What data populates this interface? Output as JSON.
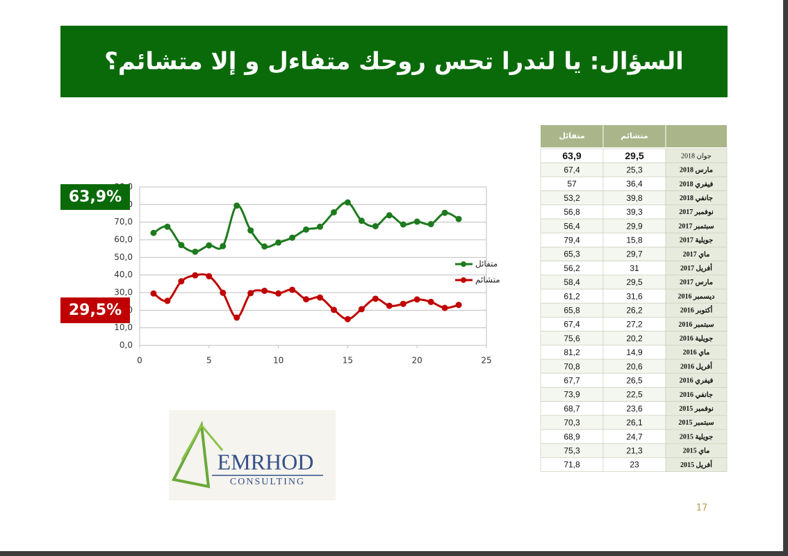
{
  "title": "السؤال: يا لندرا تحس روحك متفاءل و إلا متشائم؟",
  "callouts": [
    "63,9%",
    "29,5%"
  ],
  "chart_data": {
    "type": "line",
    "x": [
      1,
      2,
      3,
      4,
      5,
      6,
      7,
      8,
      9,
      10,
      11,
      12,
      13,
      14,
      15,
      16,
      17,
      18,
      19,
      20,
      21,
      22,
      23
    ],
    "series": [
      {
        "name": "متفائل",
        "color": "#1e7a1e",
        "values": [
          63.9,
          67.4,
          57,
          53.2,
          56.8,
          56.4,
          79.4,
          65.3,
          56.2,
          58.4,
          61.2,
          65.8,
          67.4,
          75.6,
          81.2,
          70.8,
          67.7,
          73.9,
          68.7,
          70.3,
          68.9,
          75.3,
          71.8
        ]
      },
      {
        "name": "متشائم",
        "color": "#c00000",
        "values": [
          29.5,
          25.3,
          36.4,
          39.8,
          39.3,
          29.9,
          15.8,
          29.7,
          31,
          29.5,
          31.6,
          26.2,
          27.2,
          20.2,
          14.9,
          20.6,
          26.5,
          22.5,
          23.6,
          26.1,
          24.7,
          21.3,
          23
        ]
      }
    ],
    "xlim": [
      0,
      25
    ],
    "xticks": [
      0,
      5,
      10,
      15,
      20,
      25
    ],
    "ylim": [
      0,
      90
    ],
    "yticks": [
      {
        "value": 0,
        "label": "0,0"
      },
      {
        "value": 10,
        "label": "10,0"
      },
      {
        "value": 20,
        "label": "20,0"
      },
      {
        "value": 30,
        "label": "30,0"
      },
      {
        "value": 40,
        "label": "40,0"
      },
      {
        "value": 50,
        "label": "50,0"
      },
      {
        "value": 60,
        "label": "60,0"
      },
      {
        "value": 70,
        "label": "70,0"
      },
      {
        "value": 80,
        "label": "80,0"
      },
      {
        "value": 90,
        "label": "90,0"
      }
    ],
    "grid": true,
    "legend": "right"
  },
  "table": {
    "header": [
      "متفائل",
      "متشائم"
    ],
    "rows": [
      [
        "63,9",
        "29,5",
        "جوان 2018"
      ],
      [
        "67,4",
        "25,3",
        "مارس 2018"
      ],
      [
        "57",
        "36,4",
        "فيفري 2018"
      ],
      [
        "53,2",
        "39,8",
        "جانفي 2018"
      ],
      [
        "56,8",
        "39,3",
        "نوفمبر 2017"
      ],
      [
        "56,4",
        "29,9",
        "سبتمبر 2017"
      ],
      [
        "79,4",
        "15,8",
        "جويلية 2017"
      ],
      [
        "65,3",
        "29,7",
        "ماي 2017"
      ],
      [
        "56,2",
        "31",
        "أفريل 2017"
      ],
      [
        "58,4",
        "29,5",
        "مارس 2017"
      ],
      [
        "61,2",
        "31,6",
        "ديسمبر 2016"
      ],
      [
        "65,8",
        "26,2",
        "أكتوبر 2016"
      ],
      [
        "67,4",
        "27,2",
        "سبتمبر 2016"
      ],
      [
        "75,6",
        "20,2",
        "جويلية 2016"
      ],
      [
        "81,2",
        "14,9",
        "ماي 2016"
      ],
      [
        "70,8",
        "20,6",
        "أفريل 2016"
      ],
      [
        "67,7",
        "26,5",
        "فيفري 2016"
      ],
      [
        "73,9",
        "22,5",
        "جانفي 2016"
      ],
      [
        "68,7",
        "23,6",
        "نوفمبر 2015"
      ],
      [
        "70,3",
        "26,1",
        "سبتمبر 2015"
      ],
      [
        "68,9",
        "24,7",
        "جويلية 2015"
      ],
      [
        "75,3",
        "21,3",
        "ماي 2015"
      ],
      [
        "71,8",
        "23",
        "أفريل 2015"
      ]
    ]
  },
  "logo": {
    "name": "EMRHOD",
    "tagline": "CONSULTING"
  },
  "page_number": "17"
}
